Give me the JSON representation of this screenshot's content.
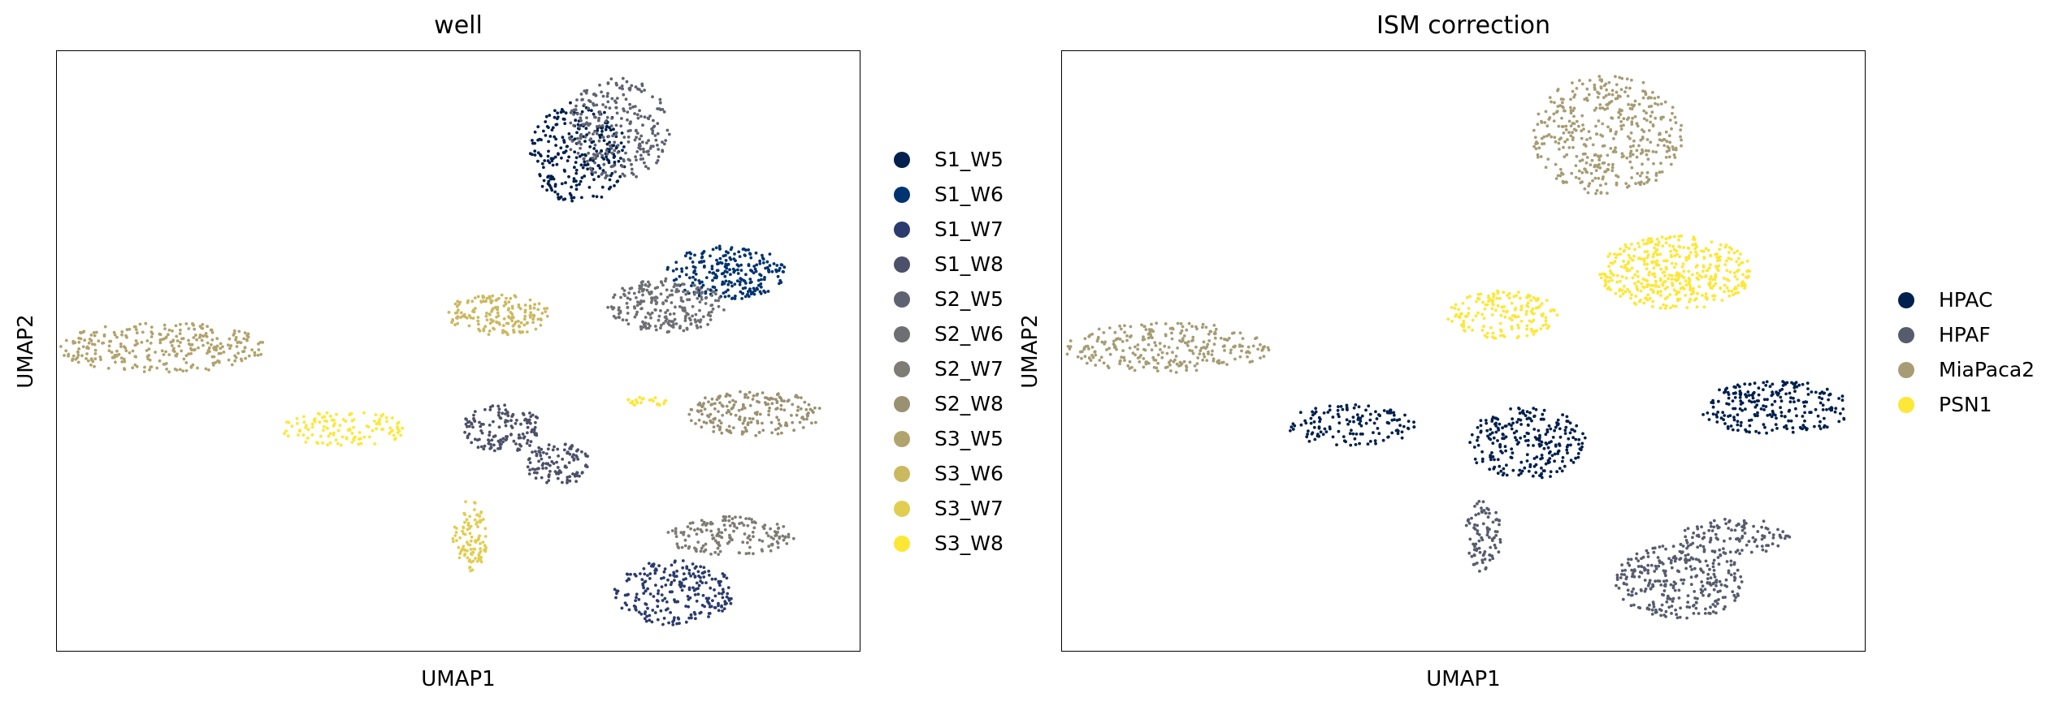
{
  "chart_data": [
    {
      "type": "scatter",
      "title": "well",
      "xlabel": "UMAP1",
      "ylabel": "UMAP2",
      "grid": false,
      "legend_position": "right",
      "xlim": [
        0,
        100
      ],
      "ylim": [
        0,
        100
      ],
      "series": [
        {
          "name": "S1_W5",
          "color": "#00204d",
          "clusters": [
            {
              "cx": 65,
              "cy": 83,
              "rx": 6,
              "ry": 8.5,
              "n": 260
            }
          ]
        },
        {
          "name": "S1_W6",
          "color": "#00336f",
          "clusters": [
            {
              "cx": 83.5,
              "cy": 63,
              "rx": 7.5,
              "ry": 4.5,
              "n": 240
            }
          ]
        },
        {
          "name": "S1_W7",
          "color": "#2b3b6d",
          "clusters": [
            {
              "cx": 77,
              "cy": 9.5,
              "rx": 7.5,
              "ry": 5.5,
              "n": 240
            }
          ]
        },
        {
          "name": "S1_W8",
          "color": "#4c5068",
          "clusters": [
            {
              "cx": 55.5,
              "cy": 37,
              "rx": 5,
              "ry": 4,
              "n": 140
            },
            {
              "cx": 62.5,
              "cy": 31,
              "rx": 4,
              "ry": 3.5,
              "n": 110
            }
          ]
        },
        {
          "name": "S2_W5",
          "color": "#5f6270",
          "clusters": [
            {
              "cx": 70,
              "cy": 87,
              "rx": 6.5,
              "ry": 8.5,
              "n": 260
            }
          ]
        },
        {
          "name": "S2_W6",
          "color": "#6e6f72",
          "clusters": [
            {
              "cx": 76,
              "cy": 57.5,
              "rx": 7.5,
              "ry": 4.5,
              "n": 230
            }
          ]
        },
        {
          "name": "S2_W7",
          "color": "#7f7c75",
          "clusters": [
            {
              "cx": 84,
              "cy": 19,
              "rx": 8,
              "ry": 3.3,
              "n": 160
            }
          ]
        },
        {
          "name": "S2_W8",
          "color": "#9a9172",
          "clusters": [
            {
              "cx": 87,
              "cy": 39.5,
              "rx": 8.5,
              "ry": 3.8,
              "n": 200
            }
          ]
        },
        {
          "name": "S3_W5",
          "color": "#b1a36d",
          "clusters": [
            {
              "cx": 13,
              "cy": 50.5,
              "rx": 13,
              "ry": 4.2,
              "n": 300
            }
          ]
        },
        {
          "name": "S3_W6",
          "color": "#cbb960",
          "clusters": [
            {
              "cx": 55,
              "cy": 56,
              "rx": 6.5,
              "ry": 3.5,
              "n": 170
            }
          ]
        },
        {
          "name": "S3_W7",
          "color": "#e1cd50",
          "clusters": [
            {
              "cx": 51.5,
              "cy": 19,
              "rx": 2.2,
              "ry": 6,
              "n": 100
            }
          ]
        },
        {
          "name": "S3_W8",
          "color": "#fde736",
          "clusters": [
            {
              "cx": 36,
              "cy": 37,
              "rx": 8,
              "ry": 3,
              "n": 120
            },
            {
              "cx": 73.5,
              "cy": 41.5,
              "rx": 2.5,
              "ry": 0.8,
              "n": 25
            }
          ]
        }
      ]
    },
    {
      "type": "scatter",
      "title": "ISM correction",
      "xlabel": "UMAP1",
      "ylabel": "UMAP2",
      "grid": false,
      "legend_position": "right",
      "xlim": [
        0,
        100
      ],
      "ylim": [
        0,
        100
      ],
      "series": [
        {
          "name": "HPAC",
          "color": "#00204d",
          "clusters": [
            {
              "cx": 58,
              "cy": 34.5,
              "rx": 7.5,
              "ry": 6,
              "n": 250
            },
            {
              "cx": 89,
              "cy": 40.5,
              "rx": 9.5,
              "ry": 4.5,
              "n": 240
            },
            {
              "cx": 36,
              "cy": 37.5,
              "rx": 8,
              "ry": 3.5,
              "n": 140
            }
          ]
        },
        {
          "name": "HPAF",
          "color": "#575c6d",
          "clusters": [
            {
              "cx": 77,
              "cy": 11.5,
              "rx": 8,
              "ry": 6.5,
              "n": 300
            },
            {
              "cx": 84,
              "cy": 19,
              "rx": 7,
              "ry": 3,
              "n": 110
            },
            {
              "cx": 52.5,
              "cy": 19,
              "rx": 2.3,
              "ry": 6,
              "n": 90
            }
          ]
        },
        {
          "name": "MiaPaca2",
          "color": "#a69d75",
          "clusters": [
            {
              "cx": 68,
              "cy": 86,
              "rx": 9.5,
              "ry": 10,
              "n": 420
            },
            {
              "cx": 13,
              "cy": 50.5,
              "rx": 13,
              "ry": 4.2,
              "n": 280
            }
          ]
        },
        {
          "name": "PSN1",
          "color": "#fde737",
          "clusters": [
            {
              "cx": 76.5,
              "cy": 63,
              "rx": 9.5,
              "ry": 6.2,
              "n": 420
            },
            {
              "cx": 55,
              "cy": 56,
              "rx": 7,
              "ry": 4,
              "n": 170
            }
          ]
        }
      ]
    }
  ]
}
